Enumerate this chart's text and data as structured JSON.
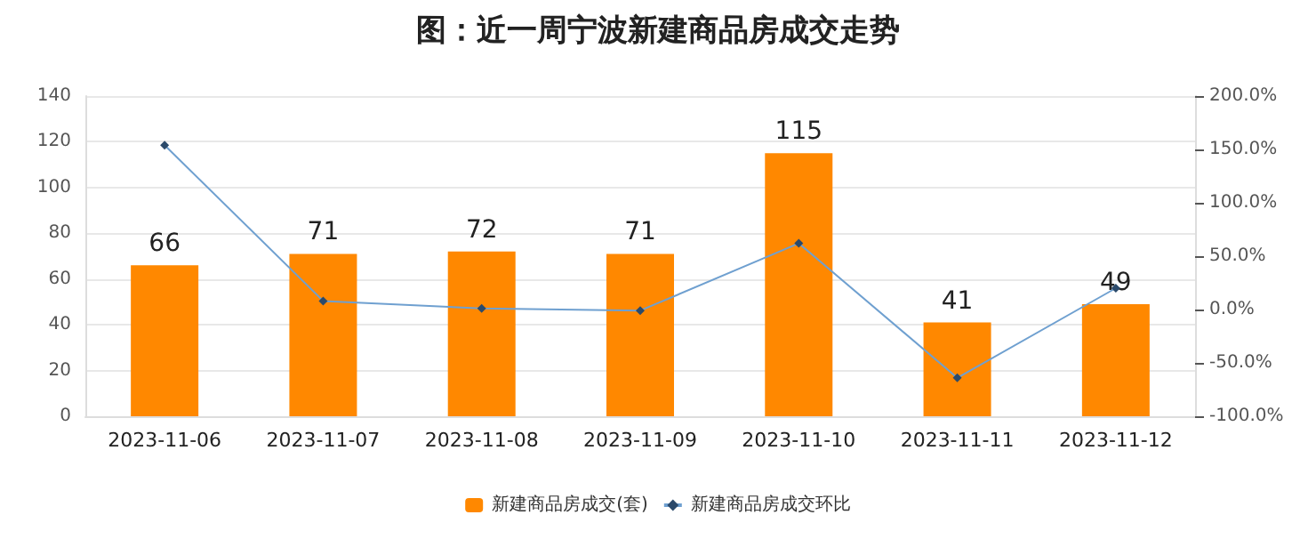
{
  "chart_data": {
    "type": "bar",
    "title": "图：近一周宁波新建商品房成交走势",
    "categories": [
      "2023-11-06",
      "2023-11-07",
      "2023-11-08",
      "2023-11-09",
      "2023-11-10",
      "2023-11-11",
      "2023-11-12"
    ],
    "series": [
      {
        "name": "新建商品房成交(套)",
        "color": "#ff8800",
        "values": [
          66,
          71,
          72,
          71,
          115,
          41,
          49
        ],
        "data_labels": true
      },
      {
        "name": "新建商品房成交环比",
        "type": "line",
        "axis": "y2",
        "color": "#6fa0d0",
        "marker": "diamond",
        "values": [
          154,
          8,
          1,
          -1,
          62,
          -64,
          20
        ]
      }
    ],
    "ylim": [
      0,
      140
    ],
    "yticks": [
      0,
      20,
      40,
      60,
      80,
      100,
      120,
      140
    ],
    "y2lim": [
      -100,
      200
    ],
    "y2ticks": [
      {
        "value": -100,
        "label": "-100.0%"
      },
      {
        "value": -50,
        "label": "-50.0%"
      },
      {
        "value": 0,
        "label": "0.0%"
      },
      {
        "value": 50,
        "label": "50.0%"
      },
      {
        "value": 100,
        "label": "100.0%"
      },
      {
        "value": 150,
        "label": "150.0%"
      },
      {
        "value": 200,
        "label": "200.0%"
      }
    ],
    "grid": "y",
    "legend": "bottom"
  }
}
